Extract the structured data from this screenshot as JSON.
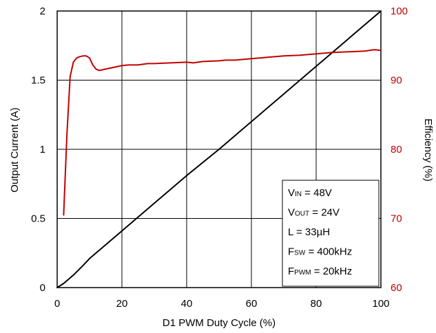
{
  "chart_data": {
    "type": "line",
    "xlabel": "D1 PWM Duty Cycle (%)",
    "ylabel_left": "Output Current (A)",
    "ylabel_right": "Efficiency (%)",
    "xlim": [
      0,
      100
    ],
    "ylim_left": [
      0,
      2
    ],
    "ylim_right": [
      60,
      100
    ],
    "x_ticks": [
      "0",
      "20",
      "40",
      "60",
      "80",
      "100"
    ],
    "y_left_ticks": [
      "0",
      "0.5",
      "1",
      "1.5",
      "2"
    ],
    "y_right_ticks": [
      "60",
      "70",
      "80",
      "90",
      "100"
    ],
    "grid": true,
    "series": [
      {
        "axis": "left",
        "color": "#000000",
        "x": [
          0,
          2,
          5,
          8,
          10,
          20,
          30,
          40,
          50,
          60,
          70,
          80,
          90,
          100
        ],
        "y": [
          0,
          0.03,
          0.09,
          0.16,
          0.21,
          0.41,
          0.61,
          0.81,
          1.0,
          1.2,
          1.4,
          1.6,
          1.8,
          2.0
        ]
      },
      {
        "axis": "right",
        "color": "#c00000",
        "x": [
          2,
          3,
          4,
          5,
          6,
          7,
          8,
          9,
          10,
          11,
          12,
          13,
          14,
          16,
          18,
          20,
          22,
          25,
          28,
          30,
          35,
          40,
          42,
          45,
          50,
          52,
          55,
          60,
          65,
          70,
          75,
          80,
          85,
          90,
          95,
          98,
          100
        ],
        "y": [
          70.5,
          82,
          90.5,
          92.6,
          93.2,
          93.4,
          93.5,
          93.5,
          93.2,
          92.2,
          91.6,
          91.4,
          91.5,
          91.7,
          91.9,
          92.1,
          92.2,
          92.2,
          92.4,
          92.4,
          92.5,
          92.6,
          92.5,
          92.7,
          92.8,
          92.9,
          92.9,
          93.1,
          93.3,
          93.5,
          93.6,
          93.8,
          94.0,
          94.1,
          94.2,
          94.4,
          94.3
        ]
      }
    ],
    "annotation_box": {
      "lines": [
        {
          "main": "V",
          "sub": "IN",
          "rest": " = 48V"
        },
        {
          "main": "V",
          "sub": "OUT",
          "rest": " = 24V"
        },
        {
          "main": "L = 33µH",
          "sub": "",
          "rest": ""
        },
        {
          "main": "F",
          "sub": "SW",
          "rest": " = 400kHz"
        },
        {
          "main": "F",
          "sub": "PWM",
          "rest": " = 20kHz"
        }
      ]
    }
  }
}
